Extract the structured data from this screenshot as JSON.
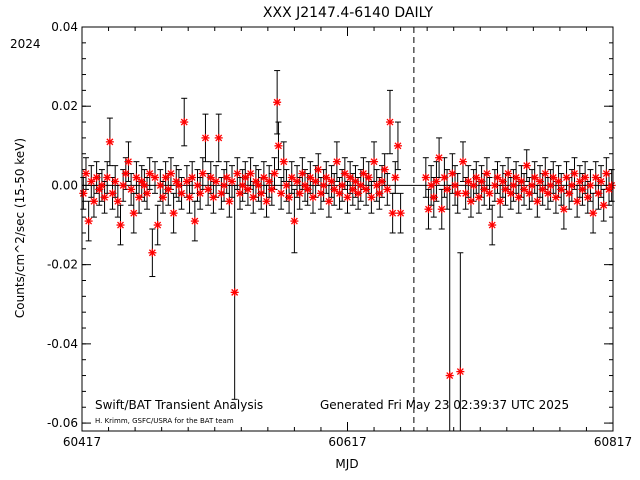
{
  "chart_data": {
    "type": "scatter",
    "title": "XXX J2147.4-6140 DAILY",
    "year_label": "2024",
    "xlabel": "MJD",
    "ylabel": "Counts/cm^2/sec (15-50 keV)",
    "xlim": [
      60417,
      60817
    ],
    "ylim": [
      -0.062,
      0.04
    ],
    "x_ticks": [
      60417,
      60617,
      60817
    ],
    "y_ticks": [
      -0.06,
      -0.04,
      -0.02,
      0.0,
      0.02,
      0.04
    ],
    "y_tick_labels": [
      "-0.06",
      "-0.04",
      "-0.02",
      "0.00",
      "0.02",
      "0.04"
    ],
    "vertical_marker_mjd": 60667,
    "marker_color": "#ff0000",
    "errorbar_color": "#000000",
    "notes": {
      "left_title": "Swift/BAT Transient Analysis",
      "credit": "H. Krimm, GSFC/USRA for the BAT team",
      "generated": "Generated Fri May 23 02:39:37 UTC 2025"
    },
    "series": [
      {
        "name": "",
        "points": [
          {
            "x": 60418,
            "y": -0.002,
            "err": 0.004
          },
          {
            "x": 60420,
            "y": 0.003,
            "err": 0.004
          },
          {
            "x": 60422,
            "y": -0.009,
            "err": 0.005
          },
          {
            "x": 60424,
            "y": 0.001,
            "err": 0.004
          },
          {
            "x": 60426,
            "y": -0.004,
            "err": 0.004
          },
          {
            "x": 60428,
            "y": 0.002,
            "err": 0.004
          },
          {
            "x": 60430,
            "y": -0.001,
            "err": 0.004
          },
          {
            "x": 60432,
            "y": 0.0,
            "err": 0.004
          },
          {
            "x": 60434,
            "y": -0.003,
            "err": 0.004
          },
          {
            "x": 60436,
            "y": 0.002,
            "err": 0.004
          },
          {
            "x": 60438,
            "y": 0.011,
            "err": 0.006
          },
          {
            "x": 60440,
            "y": -0.002,
            "err": 0.004
          },
          {
            "x": 60442,
            "y": 0.001,
            "err": 0.004
          },
          {
            "x": 60444,
            "y": -0.004,
            "err": 0.004
          },
          {
            "x": 60446,
            "y": -0.01,
            "err": 0.005
          },
          {
            "x": 60448,
            "y": 0.0,
            "err": 0.004
          },
          {
            "x": 60450,
            "y": 0.003,
            "err": 0.004
          },
          {
            "x": 60452,
            "y": 0.006,
            "err": 0.005
          },
          {
            "x": 60454,
            "y": -0.001,
            "err": 0.004
          },
          {
            "x": 60456,
            "y": -0.007,
            "err": 0.005
          },
          {
            "x": 60458,
            "y": 0.002,
            "err": 0.004
          },
          {
            "x": 60460,
            "y": -0.003,
            "err": 0.004
          },
          {
            "x": 60462,
            "y": 0.001,
            "err": 0.004
          },
          {
            "x": 60464,
            "y": 0.0,
            "err": 0.004
          },
          {
            "x": 60466,
            "y": -0.002,
            "err": 0.004
          },
          {
            "x": 60468,
            "y": 0.003,
            "err": 0.004
          },
          {
            "x": 60470,
            "y": -0.017,
            "err": 0.006
          },
          {
            "x": 60472,
            "y": 0.002,
            "err": 0.004
          },
          {
            "x": 60474,
            "y": -0.01,
            "err": 0.005
          },
          {
            "x": 60476,
            "y": 0.0,
            "err": 0.004
          },
          {
            "x": 60478,
            "y": -0.003,
            "err": 0.004
          },
          {
            "x": 60480,
            "y": 0.002,
            "err": 0.004
          },
          {
            "x": 60482,
            "y": -0.001,
            "err": 0.004
          },
          {
            "x": 60484,
            "y": 0.003,
            "err": 0.004
          },
          {
            "x": 60486,
            "y": -0.007,
            "err": 0.005
          },
          {
            "x": 60488,
            "y": 0.001,
            "err": 0.004
          },
          {
            "x": 60490,
            "y": 0.0,
            "err": 0.004
          },
          {
            "x": 60492,
            "y": -0.002,
            "err": 0.004
          },
          {
            "x": 60494,
            "y": 0.016,
            "err": 0.006
          },
          {
            "x": 60496,
            "y": 0.001,
            "err": 0.004
          },
          {
            "x": 60498,
            "y": -0.003,
            "err": 0.004
          },
          {
            "x": 60500,
            "y": 0.002,
            "err": 0.004
          },
          {
            "x": 60502,
            "y": -0.009,
            "err": 0.005
          },
          {
            "x": 60504,
            "y": 0.0,
            "err": 0.004
          },
          {
            "x": 60506,
            "y": -0.002,
            "err": 0.004
          },
          {
            "x": 60508,
            "y": 0.003,
            "err": 0.004
          },
          {
            "x": 60510,
            "y": 0.012,
            "err": 0.006
          },
          {
            "x": 60512,
            "y": -0.001,
            "err": 0.004
          },
          {
            "x": 60514,
            "y": 0.002,
            "err": 0.004
          },
          {
            "x": 60516,
            "y": -0.003,
            "err": 0.004
          },
          {
            "x": 60518,
            "y": 0.001,
            "err": 0.004
          },
          {
            "x": 60520,
            "y": 0.012,
            "err": 0.006
          },
          {
            "x": 60522,
            "y": -0.002,
            "err": 0.004
          },
          {
            "x": 60524,
            "y": 0.0,
            "err": 0.004
          },
          {
            "x": 60526,
            "y": 0.002,
            "err": 0.004
          },
          {
            "x": 60528,
            "y": -0.004,
            "err": 0.004
          },
          {
            "x": 60530,
            "y": 0.001,
            "err": 0.004
          },
          {
            "x": 60532,
            "y": -0.027,
            "err": 0.027
          },
          {
            "x": 60534,
            "y": 0.003,
            "err": 0.004
          },
          {
            "x": 60536,
            "y": -0.002,
            "err": 0.004
          },
          {
            "x": 60538,
            "y": 0.0,
            "err": 0.004
          },
          {
            "x": 60540,
            "y": 0.002,
            "err": 0.004
          },
          {
            "x": 60542,
            "y": -0.001,
            "err": 0.004
          },
          {
            "x": 60544,
            "y": 0.003,
            "err": 0.004
          },
          {
            "x": 60546,
            "y": -0.003,
            "err": 0.004
          },
          {
            "x": 60548,
            "y": 0.001,
            "err": 0.004
          },
          {
            "x": 60550,
            "y": 0.0,
            "err": 0.004
          },
          {
            "x": 60552,
            "y": -0.002,
            "err": 0.004
          },
          {
            "x": 60554,
            "y": 0.002,
            "err": 0.004
          },
          {
            "x": 60556,
            "y": -0.004,
            "err": 0.004
          },
          {
            "x": 60558,
            "y": 0.001,
            "err": 0.004
          },
          {
            "x": 60560,
            "y": -0.001,
            "err": 0.004
          },
          {
            "x": 60562,
            "y": 0.003,
            "err": 0.004
          },
          {
            "x": 60564,
            "y": 0.021,
            "err": 0.008
          },
          {
            "x": 60565,
            "y": 0.01,
            "err": 0.006
          },
          {
            "x": 60567,
            "y": -0.002,
            "err": 0.004
          },
          {
            "x": 60569,
            "y": 0.006,
            "err": 0.005
          },
          {
            "x": 60571,
            "y": 0.0,
            "err": 0.004
          },
          {
            "x": 60573,
            "y": -0.003,
            "err": 0.004
          },
          {
            "x": 60575,
            "y": 0.002,
            "err": 0.004
          },
          {
            "x": 60577,
            "y": -0.009,
            "err": 0.008
          },
          {
            "x": 60579,
            "y": 0.001,
            "err": 0.004
          },
          {
            "x": 60581,
            "y": -0.002,
            "err": 0.004
          },
          {
            "x": 60583,
            "y": 0.003,
            "err": 0.004
          },
          {
            "x": 60585,
            "y": 0.0,
            "err": 0.004
          },
          {
            "x": 60587,
            "y": -0.001,
            "err": 0.004
          },
          {
            "x": 60589,
            "y": 0.002,
            "err": 0.004
          },
          {
            "x": 60591,
            "y": -0.003,
            "err": 0.004
          },
          {
            "x": 60593,
            "y": 0.001,
            "err": 0.004
          },
          {
            "x": 60595,
            "y": 0.004,
            "err": 0.004
          },
          {
            "x": 60597,
            "y": -0.002,
            "err": 0.004
          },
          {
            "x": 60599,
            "y": 0.0,
            "err": 0.004
          },
          {
            "x": 60601,
            "y": 0.002,
            "err": 0.004
          },
          {
            "x": 60603,
            "y": -0.004,
            "err": 0.004
          },
          {
            "x": 60605,
            "y": 0.001,
            "err": 0.004
          },
          {
            "x": 60607,
            "y": -0.001,
            "err": 0.004
          },
          {
            "x": 60609,
            "y": 0.006,
            "err": 0.005
          },
          {
            "x": 60611,
            "y": -0.002,
            "err": 0.004
          },
          {
            "x": 60613,
            "y": 0.0,
            "err": 0.004
          },
          {
            "x": 60615,
            "y": 0.003,
            "err": 0.004
          },
          {
            "x": 60617,
            "y": -0.003,
            "err": 0.004
          },
          {
            "x": 60619,
            "y": 0.002,
            "err": 0.004
          },
          {
            "x": 60621,
            "y": -0.001,
            "err": 0.004
          },
          {
            "x": 60623,
            "y": 0.001,
            "err": 0.004
          },
          {
            "x": 60625,
            "y": -0.002,
            "err": 0.004
          },
          {
            "x": 60627,
            "y": 0.0,
            "err": 0.004
          },
          {
            "x": 60629,
            "y": 0.003,
            "err": 0.004
          },
          {
            "x": 60631,
            "y": -0.001,
            "err": 0.004
          },
          {
            "x": 60633,
            "y": 0.002,
            "err": 0.004
          },
          {
            "x": 60635,
            "y": -0.003,
            "err": 0.004
          },
          {
            "x": 60637,
            "y": 0.006,
            "err": 0.005
          },
          {
            "x": 60639,
            "y": 0.0,
            "err": 0.004
          },
          {
            "x": 60641,
            "y": -0.002,
            "err": 0.004
          },
          {
            "x": 60643,
            "y": 0.001,
            "err": 0.004
          },
          {
            "x": 60645,
            "y": 0.004,
            "err": 0.004
          },
          {
            "x": 60647,
            "y": -0.001,
            "err": 0.004
          },
          {
            "x": 60649,
            "y": 0.016,
            "err": 0.008
          },
          {
            "x": 60651,
            "y": -0.007,
            "err": 0.005
          },
          {
            "x": 60653,
            "y": 0.002,
            "err": 0.004
          },
          {
            "x": 60655,
            "y": 0.01,
            "err": 0.006
          },
          {
            "x": 60657,
            "y": -0.007,
            "err": 0.005
          },
          {
            "x": 60676,
            "y": 0.002,
            "err": 0.005
          },
          {
            "x": 60678,
            "y": -0.006,
            "err": 0.005
          },
          {
            "x": 60680,
            "y": 0.0,
            "err": 0.005
          },
          {
            "x": 60682,
            "y": -0.003,
            "err": 0.005
          },
          {
            "x": 60684,
            "y": 0.001,
            "err": 0.005
          },
          {
            "x": 60686,
            "y": 0.007,
            "err": 0.005
          },
          {
            "x": 60688,
            "y": -0.006,
            "err": 0.005
          },
          {
            "x": 60690,
            "y": 0.002,
            "err": 0.005
          },
          {
            "x": 60692,
            "y": -0.001,
            "err": 0.005
          },
          {
            "x": 60694,
            "y": -0.048,
            "err": 0.048
          },
          {
            "x": 60696,
            "y": 0.003,
            "err": 0.005
          },
          {
            "x": 60698,
            "y": 0.0,
            "err": 0.005
          },
          {
            "x": 60700,
            "y": -0.002,
            "err": 0.005
          },
          {
            "x": 60702,
            "y": -0.047,
            "err": 0.03
          },
          {
            "x": 60704,
            "y": 0.006,
            "err": 0.005
          },
          {
            "x": 60706,
            "y": -0.002,
            "err": 0.004
          },
          {
            "x": 60708,
            "y": 0.001,
            "err": 0.004
          },
          {
            "x": 60710,
            "y": -0.004,
            "err": 0.004
          },
          {
            "x": 60712,
            "y": 0.0,
            "err": 0.004
          },
          {
            "x": 60714,
            "y": 0.002,
            "err": 0.004
          },
          {
            "x": 60716,
            "y": -0.003,
            "err": 0.004
          },
          {
            "x": 60718,
            "y": 0.001,
            "err": 0.004
          },
          {
            "x": 60720,
            "y": -0.001,
            "err": 0.004
          },
          {
            "x": 60722,
            "y": 0.003,
            "err": 0.004
          },
          {
            "x": 60724,
            "y": -0.002,
            "err": 0.004
          },
          {
            "x": 60726,
            "y": -0.01,
            "err": 0.005
          },
          {
            "x": 60728,
            "y": 0.0,
            "err": 0.004
          },
          {
            "x": 60730,
            "y": 0.002,
            "err": 0.004
          },
          {
            "x": 60732,
            "y": -0.004,
            "err": 0.004
          },
          {
            "x": 60734,
            "y": 0.001,
            "err": 0.004
          },
          {
            "x": 60736,
            "y": -0.001,
            "err": 0.004
          },
          {
            "x": 60738,
            "y": 0.003,
            "err": 0.004
          },
          {
            "x": 60740,
            "y": -0.002,
            "err": 0.004
          },
          {
            "x": 60742,
            "y": 0.0,
            "err": 0.004
          },
          {
            "x": 60744,
            "y": 0.002,
            "err": 0.004
          },
          {
            "x": 60746,
            "y": -0.003,
            "err": 0.004
          },
          {
            "x": 60748,
            "y": 0.001,
            "err": 0.004
          },
          {
            "x": 60750,
            "y": -0.001,
            "err": 0.004
          },
          {
            "x": 60752,
            "y": 0.005,
            "err": 0.004
          },
          {
            "x": 60754,
            "y": -0.002,
            "err": 0.004
          },
          {
            "x": 60756,
            "y": 0.0,
            "err": 0.004
          },
          {
            "x": 60758,
            "y": 0.002,
            "err": 0.004
          },
          {
            "x": 60760,
            "y": -0.004,
            "err": 0.004
          },
          {
            "x": 60762,
            "y": 0.001,
            "err": 0.004
          },
          {
            "x": 60764,
            "y": -0.001,
            "err": 0.004
          },
          {
            "x": 60766,
            "y": 0.003,
            "err": 0.004
          },
          {
            "x": 60768,
            "y": -0.002,
            "err": 0.004
          },
          {
            "x": 60770,
            "y": 0.0,
            "err": 0.004
          },
          {
            "x": 60772,
            "y": 0.002,
            "err": 0.004
          },
          {
            "x": 60774,
            "y": -0.003,
            "err": 0.004
          },
          {
            "x": 60776,
            "y": 0.001,
            "err": 0.004
          },
          {
            "x": 60778,
            "y": -0.001,
            "err": 0.004
          },
          {
            "x": 60780,
            "y": -0.006,
            "err": 0.005
          },
          {
            "x": 60782,
            "y": 0.002,
            "err": 0.004
          },
          {
            "x": 60784,
            "y": -0.002,
            "err": 0.004
          },
          {
            "x": 60786,
            "y": 0.0,
            "err": 0.004
          },
          {
            "x": 60788,
            "y": 0.003,
            "err": 0.004
          },
          {
            "x": 60790,
            "y": -0.004,
            "err": 0.004
          },
          {
            "x": 60792,
            "y": 0.001,
            "err": 0.004
          },
          {
            "x": 60794,
            "y": -0.001,
            "err": 0.004
          },
          {
            "x": 60796,
            "y": 0.002,
            "err": 0.004
          },
          {
            "x": 60798,
            "y": -0.003,
            "err": 0.004
          },
          {
            "x": 60800,
            "y": 0.0,
            "err": 0.004
          },
          {
            "x": 60802,
            "y": -0.007,
            "err": 0.005
          },
          {
            "x": 60804,
            "y": 0.002,
            "err": 0.004
          },
          {
            "x": 60806,
            "y": -0.002,
            "err": 0.004
          },
          {
            "x": 60808,
            "y": 0.001,
            "err": 0.004
          },
          {
            "x": 60810,
            "y": -0.005,
            "err": 0.004
          },
          {
            "x": 60812,
            "y": 0.003,
            "err": 0.004
          },
          {
            "x": 60814,
            "y": -0.001,
            "err": 0.004
          },
          {
            "x": 60816,
            "y": 0.0,
            "err": 0.004
          }
        ]
      }
    ]
  }
}
